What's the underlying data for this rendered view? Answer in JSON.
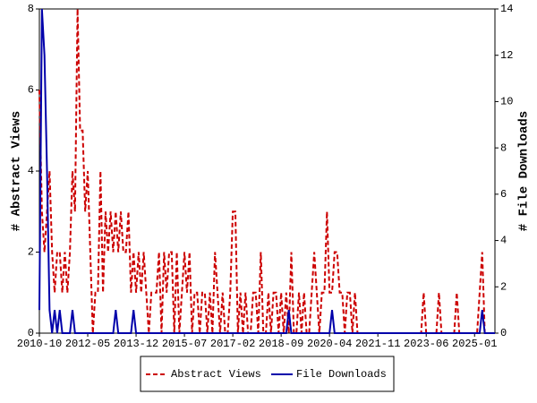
{
  "chart_data": {
    "type": "line",
    "y_label": "# Abstract Views",
    "y2_label": "# File Downloads",
    "categories": [
      "2010-10",
      null,
      null,
      null,
      null,
      null,
      null,
      null,
      null,
      null,
      null,
      null,
      null,
      null,
      null,
      null,
      null,
      null,
      null,
      "2012-05",
      null,
      null,
      null,
      null,
      null,
      null,
      null,
      null,
      null,
      null,
      null,
      null,
      null,
      null,
      null,
      null,
      null,
      null,
      "2013-12",
      null,
      null,
      null,
      null,
      null,
      null,
      null,
      null,
      null,
      null,
      null,
      null,
      null,
      null,
      null,
      null,
      null,
      null,
      "2015-07",
      null,
      null,
      null,
      null,
      null,
      null,
      null,
      null,
      null,
      null,
      null,
      null,
      null,
      null,
      null,
      null,
      null,
      null,
      "2017-02",
      null,
      null,
      null,
      null,
      null,
      null,
      null,
      null,
      null,
      null,
      null,
      null,
      null,
      null,
      null,
      null,
      null,
      null,
      "2018-09",
      null,
      null,
      null,
      null,
      null,
      null,
      null,
      null,
      null,
      null,
      null,
      null,
      null,
      null,
      null,
      null,
      null,
      null,
      "2020-04",
      null,
      null,
      null,
      null,
      null,
      null,
      null,
      null,
      null,
      null,
      null,
      null,
      null,
      null,
      null,
      null,
      null,
      null,
      "2021-11",
      null,
      null,
      null,
      null,
      null,
      null,
      null,
      null,
      null,
      null,
      null,
      null,
      null,
      null,
      null,
      null,
      null,
      null,
      "2023-06",
      null,
      null,
      null,
      null,
      null,
      null,
      null,
      null,
      null,
      null,
      null,
      null,
      null,
      null,
      null,
      null,
      null,
      null,
      "2025-01",
      null,
      null,
      null,
      null,
      null,
      null,
      null,
      null
    ],
    "series": [
      {
        "name": "Abstract Views",
        "color": "#cc0000",
        "dash": true,
        "values": [
          6,
          3,
          2,
          3,
          4,
          2,
          1,
          2,
          2,
          1,
          2,
          1,
          2,
          4,
          3,
          8,
          5,
          5,
          3,
          4,
          2,
          0,
          1,
          1,
          4,
          1,
          3,
          2,
          3,
          2,
          3,
          2,
          3,
          2,
          2,
          3,
          1,
          2,
          1,
          2,
          1,
          2,
          1,
          0,
          1,
          1,
          1,
          2,
          0,
          2,
          1,
          2,
          2,
          0,
          2,
          0,
          1,
          2,
          1,
          2,
          0,
          1,
          1,
          0,
          1,
          1,
          0,
          1,
          0,
          2,
          1,
          0,
          1,
          0,
          0,
          1,
          3,
          3,
          0,
          1,
          0,
          1,
          0,
          0,
          1,
          1,
          0,
          2,
          0,
          0,
          1,
          0,
          1,
          1,
          0,
          1,
          0,
          1,
          0,
          2,
          0,
          0,
          1,
          0,
          1,
          0,
          0,
          1,
          2,
          1,
          0,
          1,
          1,
          3,
          1,
          1,
          2,
          2,
          1,
          1,
          0,
          1,
          1,
          0,
          1,
          0,
          0,
          0,
          0,
          0,
          0,
          0,
          0,
          0,
          0,
          0,
          0,
          0,
          0,
          0,
          0,
          0,
          0,
          0,
          0,
          0,
          0,
          0,
          0,
          0,
          0,
          1,
          0,
          0,
          0,
          0,
          0,
          1,
          0,
          0,
          0,
          0,
          0,
          0,
          1,
          0,
          0,
          0,
          0,
          0,
          0,
          0,
          0,
          1,
          2,
          0,
          0,
          0,
          0,
          0
        ]
      },
      {
        "name": "File Downloads",
        "color": "#0000aa",
        "dash": false,
        "axis": "y2",
        "values": [
          1,
          14,
          12,
          7,
          1,
          0,
          1,
          0,
          1,
          0,
          0,
          0,
          0,
          1,
          0,
          0,
          0,
          0,
          0,
          0,
          0,
          0,
          0,
          0,
          0,
          0,
          0,
          0,
          0,
          0,
          1,
          0,
          0,
          0,
          0,
          0,
          0,
          1,
          0,
          0,
          0,
          0,
          0,
          0,
          0,
          0,
          0,
          0,
          0,
          0,
          0,
          0,
          0,
          0,
          0,
          0,
          0,
          0,
          0,
          0,
          0,
          0,
          0,
          0,
          0,
          0,
          0,
          0,
          0,
          0,
          0,
          0,
          0,
          0,
          0,
          0,
          0,
          0,
          0,
          0,
          0,
          0,
          0,
          0,
          0,
          0,
          0,
          0,
          0,
          0,
          0,
          0,
          0,
          0,
          0,
          0,
          0,
          0,
          1,
          0,
          0,
          0,
          0,
          0,
          0,
          0,
          0,
          0,
          0,
          0,
          0,
          0,
          0,
          0,
          0,
          1,
          0,
          0,
          0,
          0,
          0,
          0,
          0,
          0,
          0,
          0,
          0,
          0,
          0,
          0,
          0,
          0,
          0,
          0,
          0,
          0,
          0,
          0,
          0,
          0,
          0,
          0,
          0,
          0,
          0,
          0,
          0,
          0,
          0,
          0,
          0,
          0,
          0,
          0,
          0,
          0,
          0,
          0,
          0,
          0,
          0,
          0,
          0,
          0,
          0,
          0,
          0,
          0,
          0,
          0,
          0,
          0,
          0,
          0,
          1,
          0,
          0,
          0,
          0,
          0
        ]
      }
    ],
    "ylim": [
      0,
      8
    ],
    "yticks": [
      0,
      2,
      4,
      6,
      8
    ],
    "y2lim": [
      0,
      14
    ],
    "y2ticks": [
      0,
      2,
      4,
      6,
      8,
      10,
      12,
      14
    ],
    "legend": "bottom"
  }
}
